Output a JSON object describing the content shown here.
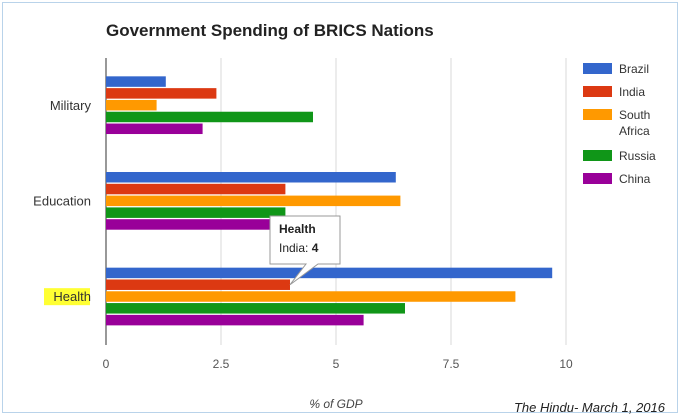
{
  "chart_data": {
    "type": "bar",
    "orientation": "horizontal",
    "title": "Government Spending of BRICS Nations",
    "categories": [
      "Military",
      "Education",
      "Health"
    ],
    "highlighted_category": "Health",
    "series": [
      {
        "name": "Brazil",
        "color": "#3366cc",
        "values": [
          1.3,
          6.3,
          9.7
        ]
      },
      {
        "name": "India",
        "color": "#dc3912",
        "values": [
          2.4,
          3.9,
          4.0
        ]
      },
      {
        "name": "South Africa",
        "legend_lines": [
          "South",
          "Africa"
        ],
        "color": "#ff9900",
        "values": [
          1.1,
          6.4,
          8.9
        ]
      },
      {
        "name": "Russia",
        "color": "#109618",
        "values": [
          4.5,
          3.9,
          6.5
        ]
      },
      {
        "name": "China",
        "color": "#990099",
        "values": [
          2.1,
          3.6,
          5.6
        ]
      }
    ],
    "xlabel": "% of GDP",
    "xlim": [
      0,
      10
    ],
    "xticks": [
      0,
      2.5,
      5,
      7.5,
      10
    ],
    "xtick_labels": [
      "0",
      "2.5",
      "5",
      "7.5",
      "10"
    ],
    "grid": true,
    "legend": "right",
    "tooltip": {
      "category": "Health",
      "series": "India",
      "title": "Health",
      "label": "India:",
      "value": "4"
    },
    "source": "The Hindu- March 1, 2016"
  }
}
